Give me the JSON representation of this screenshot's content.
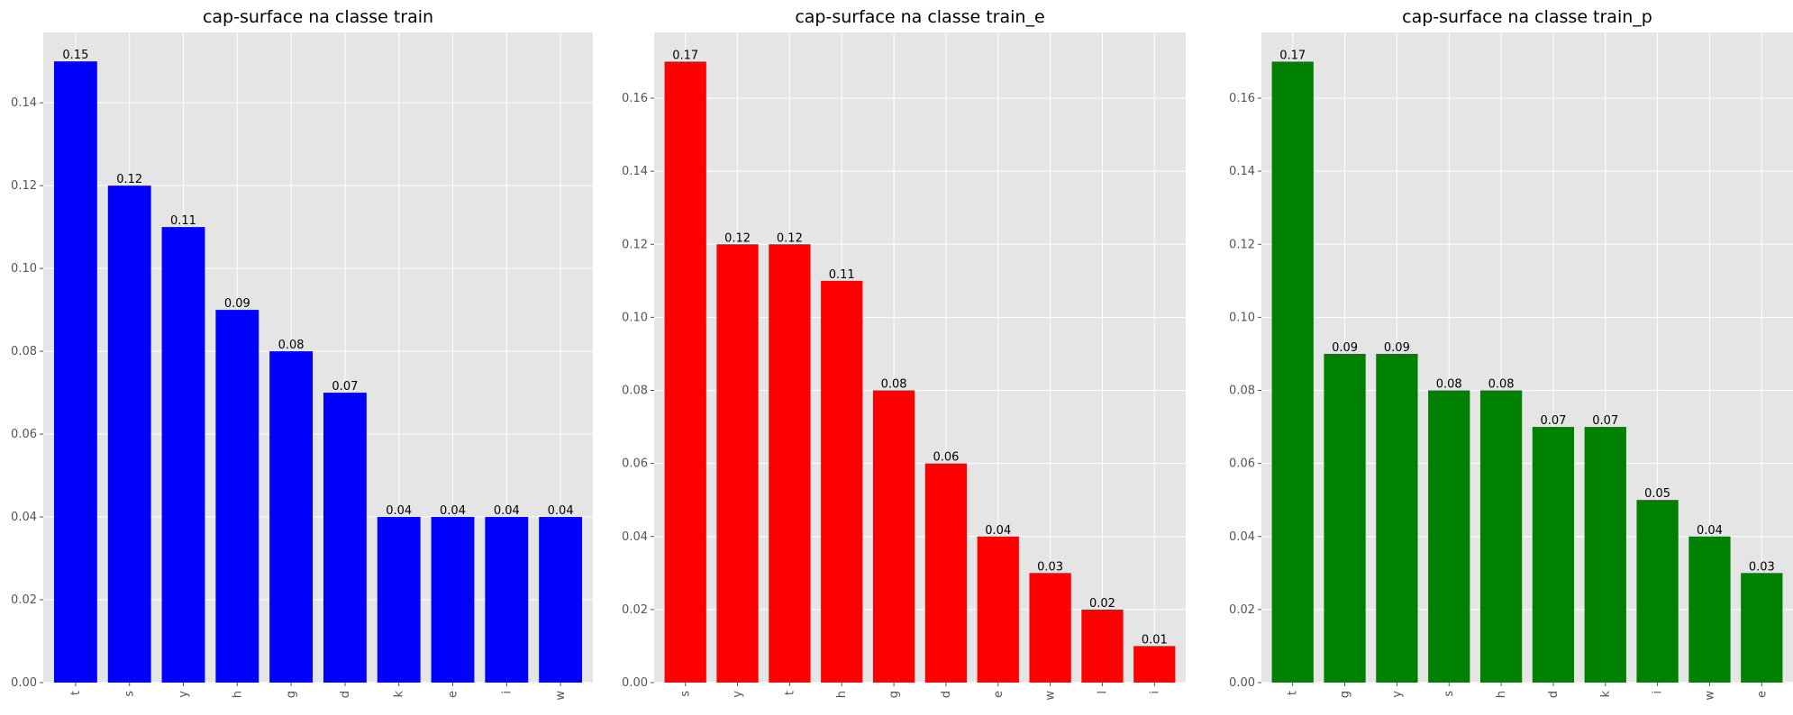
{
  "chart_data": [
    {
      "type": "bar",
      "title": "cap-surface na classe train",
      "categories": [
        "t",
        "s",
        "y",
        "h",
        "g",
        "d",
        "k",
        "e",
        "i",
        "w"
      ],
      "values": [
        0.15,
        0.12,
        0.11,
        0.09,
        0.08,
        0.07,
        0.04,
        0.04,
        0.04,
        0.04
      ],
      "data_labels": [
        "0.15",
        "0.12",
        "0.11",
        "0.09",
        "0.08",
        "0.07",
        "0.04",
        "0.04",
        "0.04",
        "0.04"
      ],
      "ylim": [
        0,
        0.157
      ],
      "yticks": [
        0.0,
        0.02,
        0.04,
        0.06,
        0.08,
        0.1,
        0.12,
        0.14
      ],
      "ytick_labels": [
        "0.00",
        "0.02",
        "0.04",
        "0.06",
        "0.08",
        "0.10",
        "0.12",
        "0.14"
      ],
      "xlabel": "",
      "ylabel": "",
      "color": "#0000ff",
      "grid": true
    },
    {
      "type": "bar",
      "title": "cap-surface na classe train_e",
      "categories": [
        "s",
        "y",
        "t",
        "h",
        "g",
        "d",
        "e",
        "w",
        "l",
        "i"
      ],
      "values": [
        0.17,
        0.12,
        0.12,
        0.11,
        0.08,
        0.06,
        0.04,
        0.03,
        0.02,
        0.01
      ],
      "data_labels": [
        "0.17",
        "0.12",
        "0.12",
        "0.11",
        "0.08",
        "0.06",
        "0.04",
        "0.03",
        "0.02",
        "0.01"
      ],
      "ylim": [
        0,
        0.178
      ],
      "yticks": [
        0.0,
        0.02,
        0.04,
        0.06,
        0.08,
        0.1,
        0.12,
        0.14,
        0.16
      ],
      "ytick_labels": [
        "0.00",
        "0.02",
        "0.04",
        "0.06",
        "0.08",
        "0.10",
        "0.12",
        "0.14",
        "0.16"
      ],
      "xlabel": "",
      "ylabel": "",
      "color": "#ff0000",
      "grid": true
    },
    {
      "type": "bar",
      "title": "cap-surface na classe train_p",
      "categories": [
        "t",
        "g",
        "y",
        "s",
        "h",
        "d",
        "k",
        "i",
        "w",
        "e"
      ],
      "values": [
        0.17,
        0.09,
        0.09,
        0.08,
        0.08,
        0.07,
        0.07,
        0.05,
        0.04,
        0.03
      ],
      "data_labels": [
        "0.17",
        "0.09",
        "0.09",
        "0.08",
        "0.08",
        "0.07",
        "0.07",
        "0.05",
        "0.04",
        "0.03"
      ],
      "ylim": [
        0,
        0.178
      ],
      "yticks": [
        0.0,
        0.02,
        0.04,
        0.06,
        0.08,
        0.1,
        0.12,
        0.14,
        0.16
      ],
      "ytick_labels": [
        "0.00",
        "0.02",
        "0.04",
        "0.06",
        "0.08",
        "0.10",
        "0.12",
        "0.14",
        "0.16"
      ],
      "xlabel": "",
      "ylabel": "",
      "color": "#008000",
      "grid": true
    }
  ],
  "style": {
    "axes_background": "#e5e5e5",
    "grid_color": "#ffffff",
    "tick_label_color": "#555555",
    "title_color": "#000000",
    "data_label_color": "#000000"
  }
}
